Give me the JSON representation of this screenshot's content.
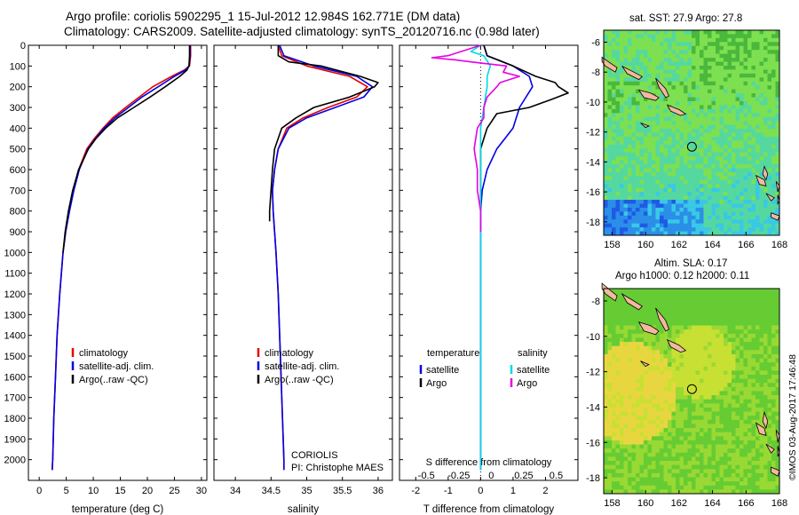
{
  "header": {
    "line1": "Argo profile: coriolis 5902295_1 15-Jul-2012 12.984S 162.771E (DM data)",
    "line2": "Climatology: CARS2009. Satellite-adjusted climatology: synTS_20120716.nc (0.98d later)"
  },
  "maps": {
    "sst_title": "sat. SST: 27.9 Argo: 27.8",
    "sla_title1": "Altim. SLA: 0.17",
    "sla_title2": "Argo h1000: 0.12 h2000: 0.11",
    "lon_ticks": [
      "158",
      "160",
      "162",
      "164",
      "166",
      "168"
    ],
    "lat_ticks": [
      "-8",
      "-10",
      "-12",
      "-14",
      "-16",
      "-18"
    ],
    "sst_lat_ticks": [
      "-6",
      "-8",
      "-10",
      "-12",
      "-14",
      "-16",
      "-18"
    ],
    "float_position": {
      "lon": 162.771,
      "lat": -12.984
    }
  },
  "side_label": "©IMOS 03-Aug-2017 17:46:48",
  "annotations": {
    "agency": "CORIOLIS",
    "pi": "PI: Christophe MAES"
  },
  "chart_data": [
    {
      "type": "line",
      "xlabel": "temperature (deg C)",
      "ylabel": "",
      "xlim": [
        -2,
        31
      ],
      "ylim": [
        2100,
        0
      ],
      "xticks": [
        0,
        5,
        10,
        15,
        20,
        25,
        30
      ],
      "yticks": [
        0,
        100,
        200,
        300,
        400,
        500,
        600,
        700,
        800,
        900,
        1000,
        1100,
        1200,
        1300,
        1400,
        1500,
        1600,
        1700,
        1800,
        1900,
        2000
      ],
      "legend": "center",
      "series": [
        {
          "name": "climatology",
          "color": "#e60000",
          "depth": [
            0,
            50,
            100,
            120,
            150,
            200,
            250,
            300,
            350,
            400,
            450,
            500,
            600,
            700,
            800,
            900,
            1000,
            1200,
            1400,
            1600,
            1800,
            2000,
            2050
          ],
          "values": [
            28,
            28,
            27.8,
            26.8,
            24.5,
            21.0,
            18.5,
            16.0,
            13.6,
            11.8,
            10.2,
            8.8,
            7.3,
            6.3,
            5.5,
            4.9,
            4.4,
            3.8,
            3.3,
            3.0,
            2.7,
            2.5,
            2.4
          ]
        },
        {
          "name": "satellite-adj. clim.",
          "color": "#0000e6",
          "depth": [
            0,
            50,
            100,
            120,
            150,
            200,
            250,
            300,
            350,
            400,
            450,
            500,
            600,
            700,
            800,
            900,
            1000,
            1200,
            1400,
            1600,
            1800,
            2000,
            2050
          ],
          "values": [
            27.9,
            27.9,
            27.7,
            27.0,
            25.0,
            22.0,
            19.0,
            16.5,
            14.0,
            12.0,
            10.4,
            9.0,
            7.4,
            6.4,
            5.6,
            4.9,
            4.4,
            3.8,
            3.3,
            3.0,
            2.7,
            2.5,
            2.4
          ]
        },
        {
          "name": "Argo(..raw -QC)",
          "color": "#000000",
          "depth": [
            0,
            50,
            100,
            120,
            150,
            200,
            250,
            300,
            350,
            400,
            450,
            500,
            600,
            700,
            800,
            900,
            1000
          ],
          "values": [
            27.8,
            27.8,
            27.7,
            27.3,
            26.0,
            23.3,
            20.5,
            17.5,
            14.5,
            12.3,
            10.5,
            9.1,
            7.3,
            6.2,
            5.4,
            4.8,
            4.4
          ]
        }
      ]
    },
    {
      "type": "line",
      "xlabel": "salinity",
      "ylabel": "",
      "xlim": [
        33.7,
        36.2
      ],
      "ylim": [
        2100,
        0
      ],
      "xticks": [
        34,
        34.5,
        35,
        35.5,
        36
      ],
      "yticks": [
        0,
        100,
        200,
        300,
        400,
        500,
        600,
        700,
        800,
        900,
        1000,
        1100,
        1200,
        1300,
        1400,
        1500,
        1600,
        1700,
        1800,
        1900,
        2000
      ],
      "legend": "center",
      "series": [
        {
          "name": "climatology",
          "color": "#e60000",
          "depth": [
            0,
            50,
            100,
            150,
            200,
            250,
            300,
            350,
            400,
            500,
            600,
            700,
            800,
            900,
            1000,
            1200,
            1400,
            1600,
            1800,
            2000,
            2050
          ],
          "values": [
            34.6,
            34.65,
            35.0,
            35.6,
            35.85,
            35.7,
            35.3,
            34.95,
            34.72,
            34.6,
            34.55,
            34.52,
            34.53,
            34.55,
            34.57,
            34.6,
            34.62,
            34.64,
            34.66,
            34.68,
            34.68
          ]
        },
        {
          "name": "satellite-adj. clim.",
          "color": "#0000e6",
          "depth": [
            0,
            50,
            100,
            150,
            200,
            250,
            300,
            350,
            400,
            500,
            600,
            700,
            800,
            900,
            1000,
            1200,
            1400,
            1600,
            1800,
            2000,
            2050
          ],
          "values": [
            34.62,
            34.68,
            35.1,
            35.7,
            35.92,
            35.8,
            35.4,
            35.0,
            34.75,
            34.6,
            34.55,
            34.52,
            34.53,
            34.55,
            34.57,
            34.6,
            34.62,
            34.64,
            34.66,
            34.68,
            34.68
          ]
        },
        {
          "name": "Argo(..raw -QC)",
          "color": "#000000",
          "depth": [
            0,
            50,
            80,
            100,
            150,
            180,
            200,
            250,
            300,
            350,
            400,
            500,
            600,
            700,
            800,
            850
          ],
          "values": [
            34.6,
            34.6,
            34.75,
            35.2,
            35.75,
            36.0,
            35.95,
            35.6,
            35.1,
            34.85,
            34.65,
            34.55,
            34.52,
            34.5,
            34.48,
            34.48
          ]
        }
      ]
    },
    {
      "type": "line",
      "xlabel": "T difference from climatology",
      "top_xlabel": "S difference from climatology",
      "xlim": [
        -2.5,
        3
      ],
      "ylim": [
        2100,
        0
      ],
      "xticks": [
        -2,
        -1,
        0,
        1,
        2
      ],
      "top_xticks": [
        "-0.5",
        "-0.25",
        "0",
        "0.25",
        "0.5"
      ],
      "yticks": [
        0,
        100,
        200,
        300,
        400,
        500,
        600,
        700,
        800,
        900,
        1000,
        1100,
        1200,
        1300,
        1400,
        1500,
        1600,
        1700,
        1800,
        1900,
        2000
      ],
      "legend": "center",
      "legend_titles": [
        "temperature",
        "salinity"
      ],
      "series": [
        {
          "name": "satellite",
          "group": "temperature",
          "color": "#0000e6",
          "depth": [
            0,
            50,
            100,
            150,
            200,
            300,
            400,
            500,
            600,
            700,
            800,
            1000,
            1500,
            2000,
            2050
          ],
          "values": [
            0.1,
            0.2,
            1.0,
            1.5,
            1.6,
            1.2,
            1.0,
            0.5,
            0.2,
            0.05,
            0.0,
            0.0,
            0.0,
            0.0,
            0.0
          ]
        },
        {
          "name": "Argo",
          "group": "temperature",
          "color": "#000000",
          "depth": [
            0,
            50,
            100,
            150,
            180,
            200,
            230,
            260,
            300,
            330,
            400,
            450,
            500,
            600,
            700,
            800
          ],
          "values": [
            0.1,
            0.2,
            1.0,
            1.7,
            2.3,
            2.4,
            2.7,
            2.2,
            1.5,
            0.5,
            0.2,
            0.1,
            0.0,
            0.0,
            0.0,
            0.0
          ]
        },
        {
          "name": "satellite",
          "group": "salinity",
          "color": "#00d8e6",
          "depth": [
            0,
            30,
            50,
            100,
            150,
            200,
            300,
            400,
            500,
            1000,
            2000,
            2050
          ],
          "values": [
            0.0,
            -0.3,
            0.1,
            0.3,
            0.2,
            0.2,
            0.1,
            0.0,
            0.0,
            0.0,
            0.0,
            0.0
          ]
        },
        {
          "name": "Argo",
          "group": "salinity",
          "color": "#e600e6",
          "depth": [
            0,
            50,
            60,
            70,
            80,
            100,
            130,
            150,
            180,
            200,
            250,
            300,
            350,
            400,
            500,
            600,
            700,
            800,
            900
          ],
          "values": [
            0.0,
            -1.0,
            -1.5,
            -0.8,
            -0.3,
            0.8,
            0.7,
            1.2,
            0.6,
            0.5,
            0.2,
            0.1,
            0.1,
            -0.1,
            -0.2,
            -0.1,
            -0.1,
            0.0,
            0.0
          ]
        }
      ]
    }
  ],
  "colors": {
    "land": "#f2b8a0",
    "sst_palette": [
      "#1f5ae6",
      "#2b8fe8",
      "#39c8e6",
      "#55d8a0",
      "#7de050",
      "#4ab83c",
      "#2e9a3a"
    ],
    "sla_palette": [
      "#3ab53a",
      "#66cc33",
      "#99d933",
      "#c8e033",
      "#e8d640",
      "#e8b33c"
    ]
  }
}
